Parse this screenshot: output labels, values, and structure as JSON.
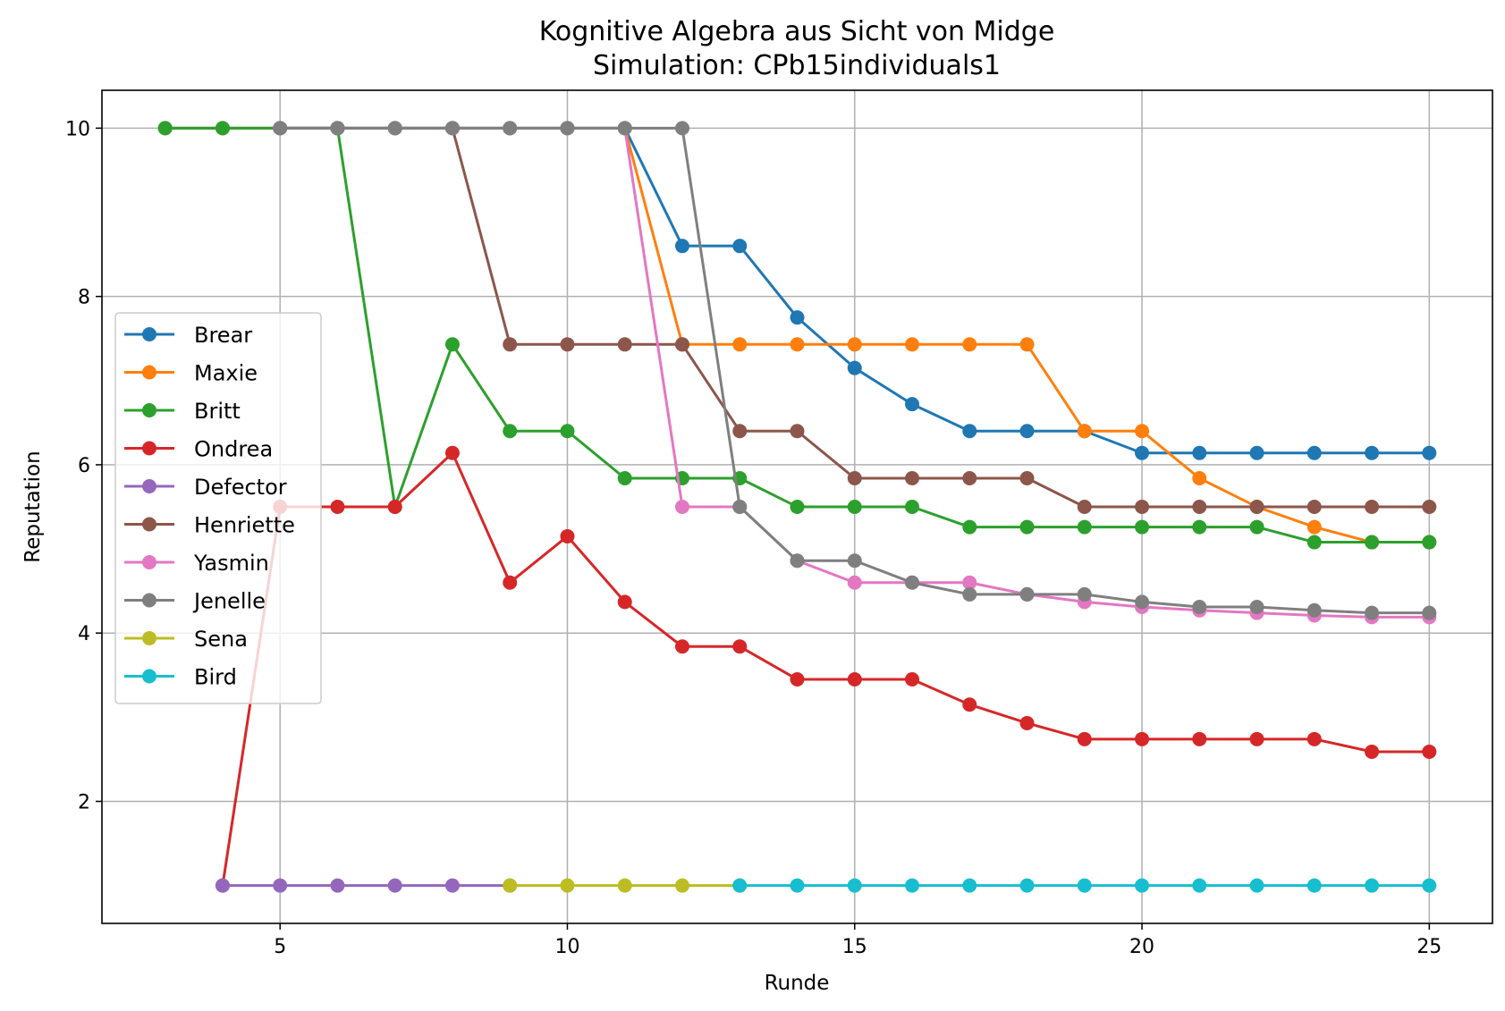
{
  "chart_data": {
    "type": "line",
    "title": "Kognitive Algebra aus Sicht von Midge",
    "subtitle": "Simulation: CPb15individuals1",
    "xlabel": "Runde",
    "ylabel": "Reputation",
    "xlim": [
      1.9,
      26.1
    ],
    "ylim": [
      0.55,
      10.45
    ],
    "xticks": [
      5,
      10,
      15,
      20,
      25
    ],
    "yticks": [
      2,
      4,
      6,
      8,
      10
    ],
    "grid": true,
    "legend_position": "center-left",
    "series": [
      {
        "name": "Brear",
        "color": "#1f77b4",
        "x": [
          3,
          4,
          5,
          6,
          7,
          8,
          9,
          10,
          11,
          12,
          13,
          14,
          15,
          16,
          17,
          18,
          19,
          20,
          21,
          22,
          23,
          24,
          25
        ],
        "y": [
          10,
          10,
          10,
          10,
          10,
          10,
          10,
          10,
          10,
          8.6,
          8.6,
          7.75,
          7.15,
          6.72,
          6.4,
          6.4,
          6.4,
          6.14,
          6.14,
          6.14,
          6.14,
          6.14,
          6.14
        ]
      },
      {
        "name": "Maxie",
        "color": "#ff7f0e",
        "x": [
          3,
          4,
          5,
          6,
          7,
          8,
          9,
          10,
          11,
          12,
          13,
          14,
          15,
          16,
          17,
          18,
          19,
          20,
          21,
          22,
          23,
          24,
          25
        ],
        "y": [
          10,
          10,
          10,
          10,
          10,
          10,
          10,
          10,
          10,
          7.43,
          7.43,
          7.43,
          7.43,
          7.43,
          7.43,
          7.43,
          6.4,
          6.4,
          5.84,
          5.5,
          5.26,
          5.08,
          5.08
        ]
      },
      {
        "name": "Britt",
        "color": "#2ca02c",
        "x": [
          3,
          4,
          5,
          6,
          7,
          8,
          9,
          10,
          11,
          12,
          13,
          14,
          15,
          16,
          17,
          18,
          19,
          20,
          21,
          22,
          23,
          24,
          25
        ],
        "y": [
          10,
          10,
          10,
          10,
          5.5,
          7.43,
          6.4,
          6.4,
          5.84,
          5.84,
          5.84,
          5.5,
          5.5,
          5.5,
          5.26,
          5.26,
          5.26,
          5.26,
          5.26,
          5.26,
          5.08,
          5.08,
          5.08
        ]
      },
      {
        "name": "Ondrea",
        "color": "#d62728",
        "x": [
          4,
          5,
          6,
          7,
          8,
          9,
          10,
          11,
          12,
          13,
          14,
          15,
          16,
          17,
          18,
          19,
          20,
          21,
          22,
          23,
          24,
          25
        ],
        "y": [
          1,
          5.5,
          5.5,
          5.5,
          6.14,
          4.6,
          5.15,
          4.37,
          3.84,
          3.84,
          3.45,
          3.45,
          3.45,
          3.15,
          2.93,
          2.74,
          2.74,
          2.74,
          2.74,
          2.74,
          2.59,
          2.59
        ]
      },
      {
        "name": "Defector",
        "color": "#9467bd",
        "x": [
          4,
          5,
          6,
          7,
          8,
          9
        ],
        "y": [
          1,
          1,
          1,
          1,
          1,
          1
        ]
      },
      {
        "name": "Henriette",
        "color": "#8c564b",
        "x": [
          5,
          6,
          7,
          8,
          9,
          10,
          11,
          12,
          13,
          14,
          15,
          16,
          17,
          18,
          19,
          20,
          21,
          22,
          23,
          24,
          25
        ],
        "y": [
          10,
          10,
          10,
          10,
          7.43,
          7.43,
          7.43,
          7.43,
          6.4,
          6.4,
          5.84,
          5.84,
          5.84,
          5.84,
          5.5,
          5.5,
          5.5,
          5.5,
          5.5,
          5.5,
          5.5
        ]
      },
      {
        "name": "Yasmin",
        "color": "#e377c2",
        "x": [
          5,
          6,
          7,
          8,
          9,
          10,
          11,
          12,
          13,
          14,
          15,
          16,
          17,
          18,
          19,
          20,
          21,
          22,
          23,
          24,
          25
        ],
        "y": [
          10,
          10,
          10,
          10,
          10,
          10,
          10,
          5.5,
          5.5,
          4.86,
          4.6,
          4.6,
          4.6,
          4.46,
          4.37,
          4.31,
          4.27,
          4.24,
          4.21,
          4.19,
          4.19
        ]
      },
      {
        "name": "Jenelle",
        "color": "#7f7f7f",
        "x": [
          5,
          6,
          7,
          8,
          9,
          10,
          11,
          12,
          13,
          14,
          15,
          16,
          17,
          18,
          19,
          20,
          21,
          22,
          23,
          24,
          25
        ],
        "y": [
          10,
          10,
          10,
          10,
          10,
          10,
          10,
          10,
          5.5,
          4.86,
          4.86,
          4.6,
          4.46,
          4.46,
          4.46,
          4.37,
          4.31,
          4.31,
          4.27,
          4.24,
          4.24
        ]
      },
      {
        "name": "Sena",
        "color": "#bcbd22",
        "x": [
          9,
          10,
          11,
          12,
          13
        ],
        "y": [
          1,
          1,
          1,
          1,
          1
        ]
      },
      {
        "name": "Bird",
        "color": "#17becf",
        "x": [
          13,
          14,
          15,
          16,
          17,
          18,
          19,
          20,
          21,
          22,
          23,
          24,
          25
        ],
        "y": [
          1,
          1,
          1,
          1,
          1,
          1,
          1,
          1,
          1,
          1,
          1,
          1,
          1
        ]
      }
    ]
  }
}
